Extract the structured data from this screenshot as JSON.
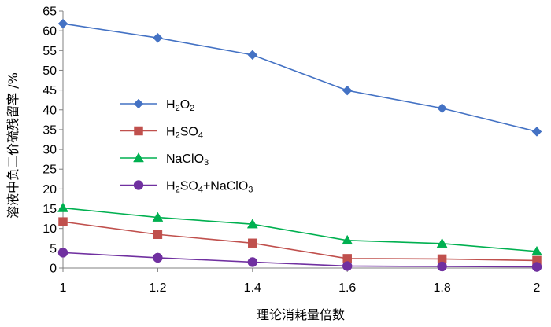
{
  "chart_data": {
    "type": "line",
    "title": "",
    "xlabel": "理论消耗量倍数",
    "ylabel": "溶液中负二价硫残留率 /%",
    "x": [
      1,
      1.2,
      1.4,
      1.6,
      1.8,
      2
    ],
    "x_tick_labels": [
      "1",
      "1.2",
      "1.4",
      "1.6",
      "1.8",
      "2"
    ],
    "xlim": [
      1,
      2
    ],
    "ylim": [
      0,
      65
    ],
    "y_ticks": [
      0,
      5,
      10,
      15,
      20,
      25,
      30,
      35,
      40,
      45,
      50,
      55,
      60,
      65
    ],
    "grid": false,
    "legend_position": "middle-left",
    "series": [
      {
        "name": "H2O2",
        "label_parts": [
          [
            "H",
            ""
          ],
          [
            "2",
            "sub"
          ],
          [
            "O",
            ""
          ],
          [
            "2",
            "sub"
          ]
        ],
        "color": "#4472c4",
        "marker": "diamond",
        "values": [
          61.8,
          58.2,
          53.9,
          44.9,
          40.4,
          34.5
        ]
      },
      {
        "name": "H2SO4",
        "label_parts": [
          [
            "H",
            ""
          ],
          [
            "2",
            "sub"
          ],
          [
            "SO",
            ""
          ],
          [
            "4",
            "sub"
          ]
        ],
        "color": "#c0504d",
        "marker": "square",
        "values": [
          11.7,
          8.5,
          6.3,
          2.4,
          2.3,
          1.9
        ]
      },
      {
        "name": "NaClO3",
        "label_parts": [
          [
            "NaClO",
            ""
          ],
          [
            "3",
            "sub"
          ]
        ],
        "color": "#00b050",
        "marker": "triangle",
        "values": [
          15.2,
          12.8,
          11.1,
          7.0,
          6.2,
          4.2
        ]
      },
      {
        "name": "H2SO4+NaClO3",
        "label_parts": [
          [
            "H",
            ""
          ],
          [
            "2",
            "sub"
          ],
          [
            "SO",
            ""
          ],
          [
            "4",
            "sub"
          ],
          [
            "+NaClO",
            ""
          ],
          [
            "3",
            "sub"
          ]
        ],
        "color": "#7030a0",
        "marker": "circle",
        "values": [
          3.9,
          2.6,
          1.5,
          0.5,
          0.4,
          0.3
        ]
      }
    ]
  }
}
